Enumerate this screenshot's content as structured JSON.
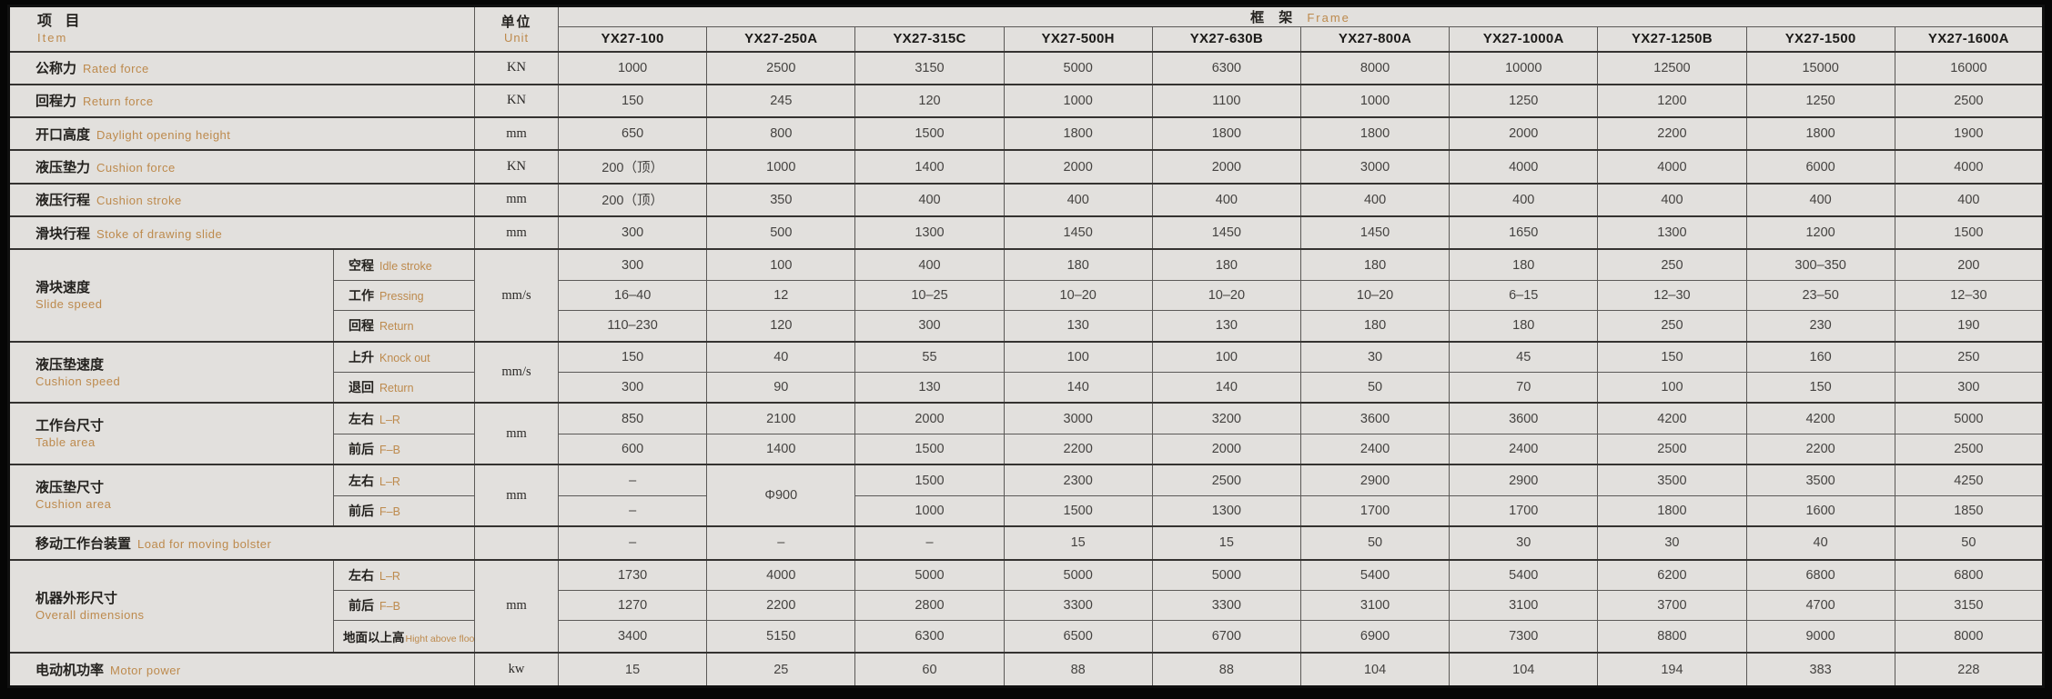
{
  "colors": {
    "cell_background": "#e2e0dd",
    "english_accent": "#bd8a4d",
    "chinese_text": "#24221f",
    "grid_line": "#5b5957",
    "outer_frame": "#101010"
  },
  "table": {
    "header": {
      "item": {
        "zh": "项 目",
        "en": "Item"
      },
      "unit": {
        "zh": "单位",
        "en": "Unit"
      },
      "frame": {
        "zh": "框 架",
        "en": "Frame"
      },
      "models": [
        "YX27-100",
        "YX27-250A",
        "YX27-315C",
        "YX27-500H",
        "YX27-630B",
        "YX27-800A",
        "YX27-1000A",
        "YX27-1250B",
        "YX27-1500",
        "YX27-1600A"
      ]
    },
    "rows": [
      {
        "type": "simple",
        "zh": "公称力",
        "en": "Rated force",
        "unit": "KN",
        "values": [
          "1000",
          "2500",
          "3150",
          "5000",
          "6300",
          "8000",
          "10000",
          "12500",
          "15000",
          "16000"
        ]
      },
      {
        "type": "simple",
        "zh": "回程力",
        "en": "Return force",
        "unit": "KN",
        "values": [
          "150",
          "245",
          "120",
          "1000",
          "1100",
          "1000",
          "1250",
          "1200",
          "1250",
          "2500"
        ]
      },
      {
        "type": "simple",
        "zh": "开口高度",
        "en": "Daylight opening height",
        "unit": "mm",
        "values": [
          "650",
          "800",
          "1500",
          "1800",
          "1800",
          "1800",
          "2000",
          "2200",
          "1800",
          "1900"
        ]
      },
      {
        "type": "simple",
        "zh": "液压垫力",
        "en": "Cushion force",
        "unit": "KN",
        "values": [
          "200（顶）",
          "1000",
          "1400",
          "2000",
          "2000",
          "3000",
          "4000",
          "4000",
          "6000",
          "4000"
        ]
      },
      {
        "type": "simple",
        "zh": "液压行程",
        "en": "Cushion stroke",
        "unit": "mm",
        "values": [
          "200（顶）",
          "350",
          "400",
          "400",
          "400",
          "400",
          "400",
          "400",
          "400",
          "400"
        ]
      },
      {
        "type": "simple",
        "zh": "滑块行程",
        "en": "Stoke of drawing slide",
        "unit": "mm",
        "values": [
          "300",
          "500",
          "1300",
          "1450",
          "1450",
          "1450",
          "1650",
          "1300",
          "1200",
          "1500"
        ]
      },
      {
        "type": "group",
        "zh": "滑块速度",
        "en": "Slide speed",
        "unit": "mm/s",
        "subrows": [
          {
            "zh": "空程",
            "en": "Idle stroke",
            "values": [
              "300",
              "100",
              "400",
              "180",
              "180",
              "180",
              "180",
              "250",
              "300–350",
              "200"
            ]
          },
          {
            "zh": "工作",
            "en": "Pressing",
            "values": [
              "16–40",
              "12",
              "10–25",
              "10–20",
              "10–20",
              "10–20",
              "6–15",
              "12–30",
              "23–50",
              "12–30"
            ]
          },
          {
            "zh": "回程",
            "en": "Return",
            "values": [
              "110–230",
              "120",
              "300",
              "130",
              "130",
              "180",
              "180",
              "250",
              "230",
              "190"
            ]
          }
        ]
      },
      {
        "type": "group",
        "zh": "液压垫速度",
        "en": "Cushion speed",
        "unit": "mm/s",
        "subrows": [
          {
            "zh": "上升",
            "en": "Knock out",
            "values": [
              "150",
              "40",
              "55",
              "100",
              "100",
              "30",
              "45",
              "150",
              "160",
              "250"
            ]
          },
          {
            "zh": "退回",
            "en": "Return",
            "values": [
              "300",
              "90",
              "130",
              "140",
              "140",
              "50",
              "70",
              "100",
              "150",
              "300"
            ]
          }
        ]
      },
      {
        "type": "group",
        "zh": "工作台尺寸",
        "en": "Table area",
        "unit": "mm",
        "subrows": [
          {
            "zh": "左右",
            "en": "L–R",
            "values": [
              "850",
              "2100",
              "2000",
              "3000",
              "3200",
              "3600",
              "3600",
              "4200",
              "4200",
              "5000"
            ]
          },
          {
            "zh": "前后",
            "en": "F–B",
            "values": [
              "600",
              "1400",
              "1500",
              "2200",
              "2000",
              "2400",
              "2400",
              "2500",
              "2200",
              "2500"
            ]
          }
        ]
      },
      {
        "type": "group",
        "zh": "液压垫尺寸",
        "en": "Cushion area",
        "unit": "mm",
        "merge": {
          "col": 1,
          "text": "Φ900"
        },
        "subrows": [
          {
            "zh": "左右",
            "en": "L–R",
            "values": [
              "–",
              null,
              "1500",
              "2300",
              "2500",
              "2900",
              "2900",
              "3500",
              "3500",
              "4250"
            ]
          },
          {
            "zh": "前后",
            "en": "F–B",
            "values": [
              "–",
              null,
              "1000",
              "1500",
              "1300",
              "1700",
              "1700",
              "1800",
              "1600",
              "1850"
            ]
          }
        ]
      },
      {
        "type": "simple",
        "zh": "移动工作台装置",
        "en": "Load for moving bolster",
        "unit": "",
        "values": [
          "–",
          "–",
          "–",
          "15",
          "15",
          "50",
          "30",
          "30",
          "40",
          "50"
        ]
      },
      {
        "type": "group",
        "zh": "机器外形尺寸",
        "en": "Overall dimensions",
        "unit": "mm",
        "subrows": [
          {
            "zh": "左右",
            "en": "L–R",
            "values": [
              "1730",
              "4000",
              "5000",
              "5000",
              "5000",
              "5400",
              "5400",
              "6200",
              "6800",
              "6800"
            ]
          },
          {
            "zh": "前后",
            "en": "F–B",
            "values": [
              "1270",
              "2200",
              "2800",
              "3300",
              "3300",
              "3100",
              "3100",
              "3700",
              "4700",
              "3150"
            ]
          },
          {
            "zh": "地面以上高",
            "en": "Hight above floor",
            "values": [
              "3400",
              "5150",
              "6300",
              "6500",
              "6700",
              "6900",
              "7300",
              "8800",
              "9000",
              "8000"
            ]
          }
        ]
      },
      {
        "type": "simple",
        "zh": "电动机功率",
        "en": "Motor power",
        "unit": "kw",
        "values": [
          "15",
          "25",
          "60",
          "88",
          "88",
          "104",
          "104",
          "194",
          "383",
          "228"
        ]
      }
    ]
  }
}
